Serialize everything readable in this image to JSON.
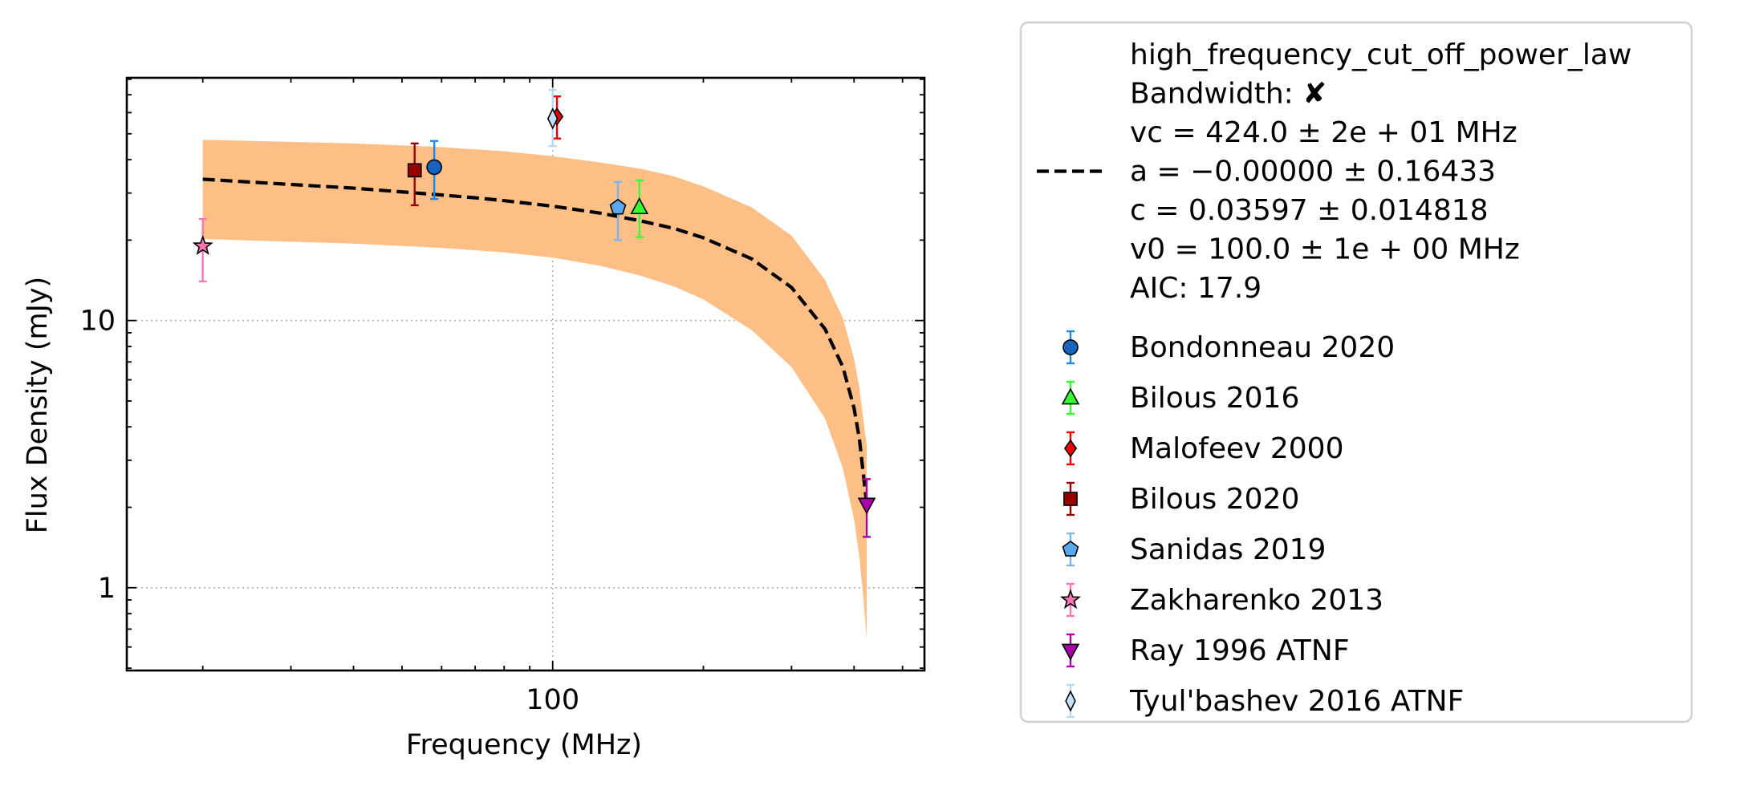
{
  "chart_data": {
    "type": "scatter",
    "xlabel": "Frequency (MHz)",
    "ylabel": "Flux Density (mJy)",
    "xscale": "log",
    "yscale": "log",
    "xlim": [
      14.1,
      553
    ],
    "ylim": [
      0.49,
      81
    ],
    "x_ticks": [
      {
        "value": 100,
        "label": "100"
      }
    ],
    "y_ticks": [
      {
        "value": 1,
        "label": "1"
      },
      {
        "value": 10,
        "label": "10"
      }
    ],
    "grid": "dotted, major ticks",
    "legend_position": "outside-right",
    "fit": {
      "model": "high_frequency_cut_off_power_law",
      "lines": [
        "high_frequency_cut_off_power_law",
        "Bandwidth: ✘",
        "vc = 424.0 ± 2e + 01 MHz",
        "a = −0.00000 ± 0.16433",
        "c = 0.03597 ± 0.014818",
        "v0 = 100.0 ± 1e + 00 MHz",
        "AIC: 17.9"
      ],
      "line_color": "#000000",
      "band_color": "#fdbf85",
      "curve": [
        {
          "x": 20,
          "y": 33.8
        },
        {
          "x": 30,
          "y": 32.3
        },
        {
          "x": 40,
          "y": 31.3
        },
        {
          "x": 50,
          "y": 30.3
        },
        {
          "x": 60,
          "y": 29.5
        },
        {
          "x": 70,
          "y": 28.8
        },
        {
          "x": 80,
          "y": 28.1
        },
        {
          "x": 100,
          "y": 26.8
        },
        {
          "x": 125,
          "y": 25.2
        },
        {
          "x": 150,
          "y": 23.6
        },
        {
          "x": 175,
          "y": 22.1
        },
        {
          "x": 200,
          "y": 20.4
        },
        {
          "x": 250,
          "y": 17.0
        },
        {
          "x": 300,
          "y": 13.3
        },
        {
          "x": 350,
          "y": 9.3
        },
        {
          "x": 380,
          "y": 6.7
        },
        {
          "x": 400,
          "y": 4.7
        },
        {
          "x": 410,
          "y": 3.6
        },
        {
          "x": 418,
          "y": 2.6
        },
        {
          "x": 424,
          "y": 2.05
        }
      ],
      "band": [
        {
          "x": 20,
          "lo": 20.2,
          "hi": 47.5
        },
        {
          "x": 40,
          "lo": 19.4,
          "hi": 46.0
        },
        {
          "x": 60,
          "lo": 18.7,
          "hi": 44.6
        },
        {
          "x": 80,
          "lo": 18.0,
          "hi": 43.0
        },
        {
          "x": 100,
          "lo": 17.2,
          "hi": 41.2
        },
        {
          "x": 125,
          "lo": 16.0,
          "hi": 39.0
        },
        {
          "x": 150,
          "lo": 14.7,
          "hi": 37.0
        },
        {
          "x": 175,
          "lo": 13.4,
          "hi": 34.6
        },
        {
          "x": 200,
          "lo": 12.0,
          "hi": 31.8
        },
        {
          "x": 250,
          "lo": 9.2,
          "hi": 26.5
        },
        {
          "x": 300,
          "lo": 6.7,
          "hi": 20.8
        },
        {
          "x": 350,
          "lo": 4.3,
          "hi": 14.2
        },
        {
          "x": 380,
          "lo": 2.8,
          "hi": 10.2
        },
        {
          "x": 400,
          "lo": 1.8,
          "hi": 7.2
        },
        {
          "x": 410,
          "lo": 1.3,
          "hi": 5.6
        },
        {
          "x": 418,
          "lo": 0.9,
          "hi": 4.2
        },
        {
          "x": 424,
          "lo": 0.64,
          "hi": 3.4
        }
      ]
    },
    "series": [
      {
        "name": "Bondonneau 2020",
        "marker": "circle",
        "color": "#1565c0",
        "err_color": "#1e88e5",
        "points": [
          {
            "x": 58,
            "y": 37.5,
            "lo": 28.5,
            "hi": 47
          }
        ]
      },
      {
        "name": "Bilous 2016",
        "marker": "triangle-up",
        "color": "#33ff33",
        "err_color": "#33ff33",
        "points": [
          {
            "x": 149,
            "y": 26.5,
            "lo": 20.5,
            "hi": 33.5
          }
        ]
      },
      {
        "name": "Malofeev 2000",
        "marker": "diamond",
        "color": "#ee0000",
        "err_color": "#ee0000",
        "points": [
          {
            "x": 102,
            "y": 58,
            "lo": 48,
            "hi": 69
          }
        ]
      },
      {
        "name": "Bilous 2020",
        "marker": "square",
        "color": "#990000",
        "err_color": "#990000",
        "points": [
          {
            "x": 53,
            "y": 36.5,
            "lo": 27,
            "hi": 46
          }
        ]
      },
      {
        "name": "Sanidas 2019",
        "marker": "pentagon",
        "color": "#5aa9f0",
        "err_color": "#7ab6ee",
        "points": [
          {
            "x": 135,
            "y": 26.5,
            "lo": 20,
            "hi": 33
          }
        ]
      },
      {
        "name": "Zakharenko 2013",
        "marker": "star",
        "color": "#f777b5",
        "err_color": "#f777b5",
        "points": [
          {
            "x": 20,
            "y": 19,
            "lo": 14,
            "hi": 24
          }
        ]
      },
      {
        "name": "Ray 1996 ATNF",
        "marker": "triangle-down",
        "color": "#aa00aa",
        "err_color": "#aa00aa",
        "points": [
          {
            "x": 424,
            "y": 2.05,
            "lo": 1.55,
            "hi": 2.55
          }
        ]
      },
      {
        "name": "Tyul'bashev 2016 ATNF",
        "marker": "thin-diamond",
        "color": "#c4e1fa",
        "err_color": "#b5d8f7",
        "points": [
          {
            "x": 100,
            "y": 57,
            "lo": 45,
            "hi": 73
          }
        ]
      }
    ]
  }
}
